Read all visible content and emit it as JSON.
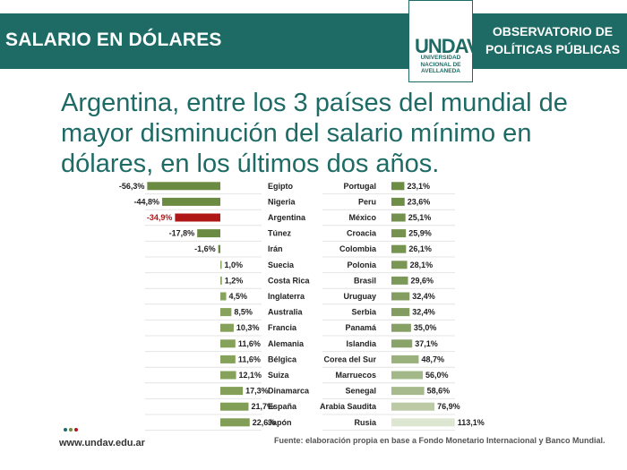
{
  "header": {
    "title": "SALARIO EN DÓLARES",
    "observatory": "OBSERVATORIO DE POLÍTICAS PÚBLICAS",
    "logo_mark": "UNDAV",
    "logo_text": "UNIVERSIDAD NACIONAL DE AVELLANEDA"
  },
  "headline": "Argentina, entre los 3 países del mundial de mayor disminución del salario mínimo en dólares, en los últimos dos años.",
  "footer": {
    "url": "www.undav.edu.ar",
    "source": "Fuente: elaboración propia en base a Fondo Monetario Internacional y Banco Mundial."
  },
  "colors": {
    "brand": "#1e6b66",
    "negative": "#6b8a42",
    "highlight": "#b01818",
    "positive_dark": "#6b8a42",
    "positive_light": "#dde6d0"
  },
  "chart_data": [
    {
      "type": "bar",
      "orientation": "horizontal",
      "categories": [
        "Egipto",
        "Nigeria",
        "Argentina",
        "Túnez",
        "Irán",
        "Suecia",
        "Costa Rica",
        "Inglaterra",
        "Australia",
        "Francia",
        "Alemania",
        "Bélgica",
        "Suiza",
        "Dinamarca",
        "España",
        "Japón"
      ],
      "values": [
        -56.3,
        -44.8,
        -34.9,
        -17.8,
        -1.6,
        1.0,
        1.2,
        4.5,
        8.5,
        10.3,
        11.6,
        11.6,
        12.1,
        17.3,
        21.7,
        22.6
      ],
      "value_labels": [
        "-56,3%",
        "-44,8%",
        "-34,9%",
        "-17,8%",
        "-1,6%",
        "1,0%",
        "1,2%",
        "4,5%",
        "8,5%",
        "10,3%",
        "11,6%",
        "11,6%",
        "12,1%",
        "17,3%",
        "21,7%",
        "22,6%"
      ],
      "highlight": "Argentina"
    },
    {
      "type": "bar",
      "orientation": "horizontal",
      "categories": [
        "Portugal",
        "Peru",
        "México",
        "Croacia",
        "Colombia",
        "Polonia",
        "Brasil",
        "Uruguay",
        "Serbia",
        "Panamá",
        "Islandia",
        "Corea del Sur",
        "Marruecos",
        "Senegal",
        "Arabia Saudita",
        "Rusia"
      ],
      "values": [
        23.1,
        23.6,
        25.1,
        25.9,
        26.1,
        28.1,
        29.6,
        32.4,
        32.4,
        35.0,
        37.1,
        48.7,
        56.0,
        58.6,
        76.9,
        113.1
      ],
      "value_labels": [
        "23,1%",
        "23,6%",
        "25,1%",
        "25,9%",
        "26,1%",
        "28,1%",
        "29,6%",
        "32,4%",
        "32,4%",
        "35,0%",
        "37,1%",
        "48,7%",
        "56,0%",
        "58,6%",
        "76,9%",
        "113,1%"
      ]
    }
  ]
}
